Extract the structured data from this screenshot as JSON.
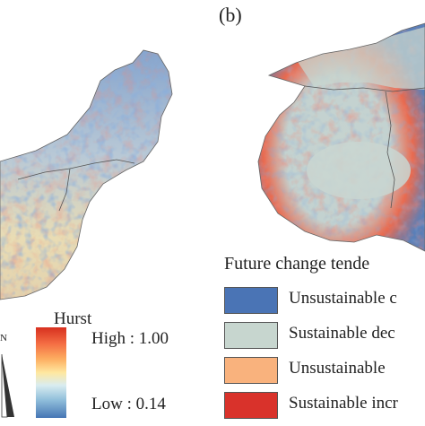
{
  "panel_b": {
    "label": "(b)"
  },
  "hurst_legend": {
    "title": "Hurst",
    "high_label": "High : 1.00",
    "low_label": "Low : 0.14",
    "high_value": 1.0,
    "low_value": 0.14,
    "colors": [
      "#d7301f",
      "#fdae61",
      "#fee8a0",
      "#91bfdb",
      "#4575b4"
    ]
  },
  "north_arrow": {
    "label": "N"
  },
  "trend_legend": {
    "title": "Future change tende",
    "items": [
      {
        "label": "Unsustainable c",
        "color": "#4a74b5"
      },
      {
        "label": "Sustainable dec",
        "color": "#c7d6cf"
      },
      {
        "label": "Unsustainable",
        "color": "#f9b27d"
      },
      {
        "label": "Sustainable incr",
        "color": "#d9322b"
      }
    ]
  }
}
